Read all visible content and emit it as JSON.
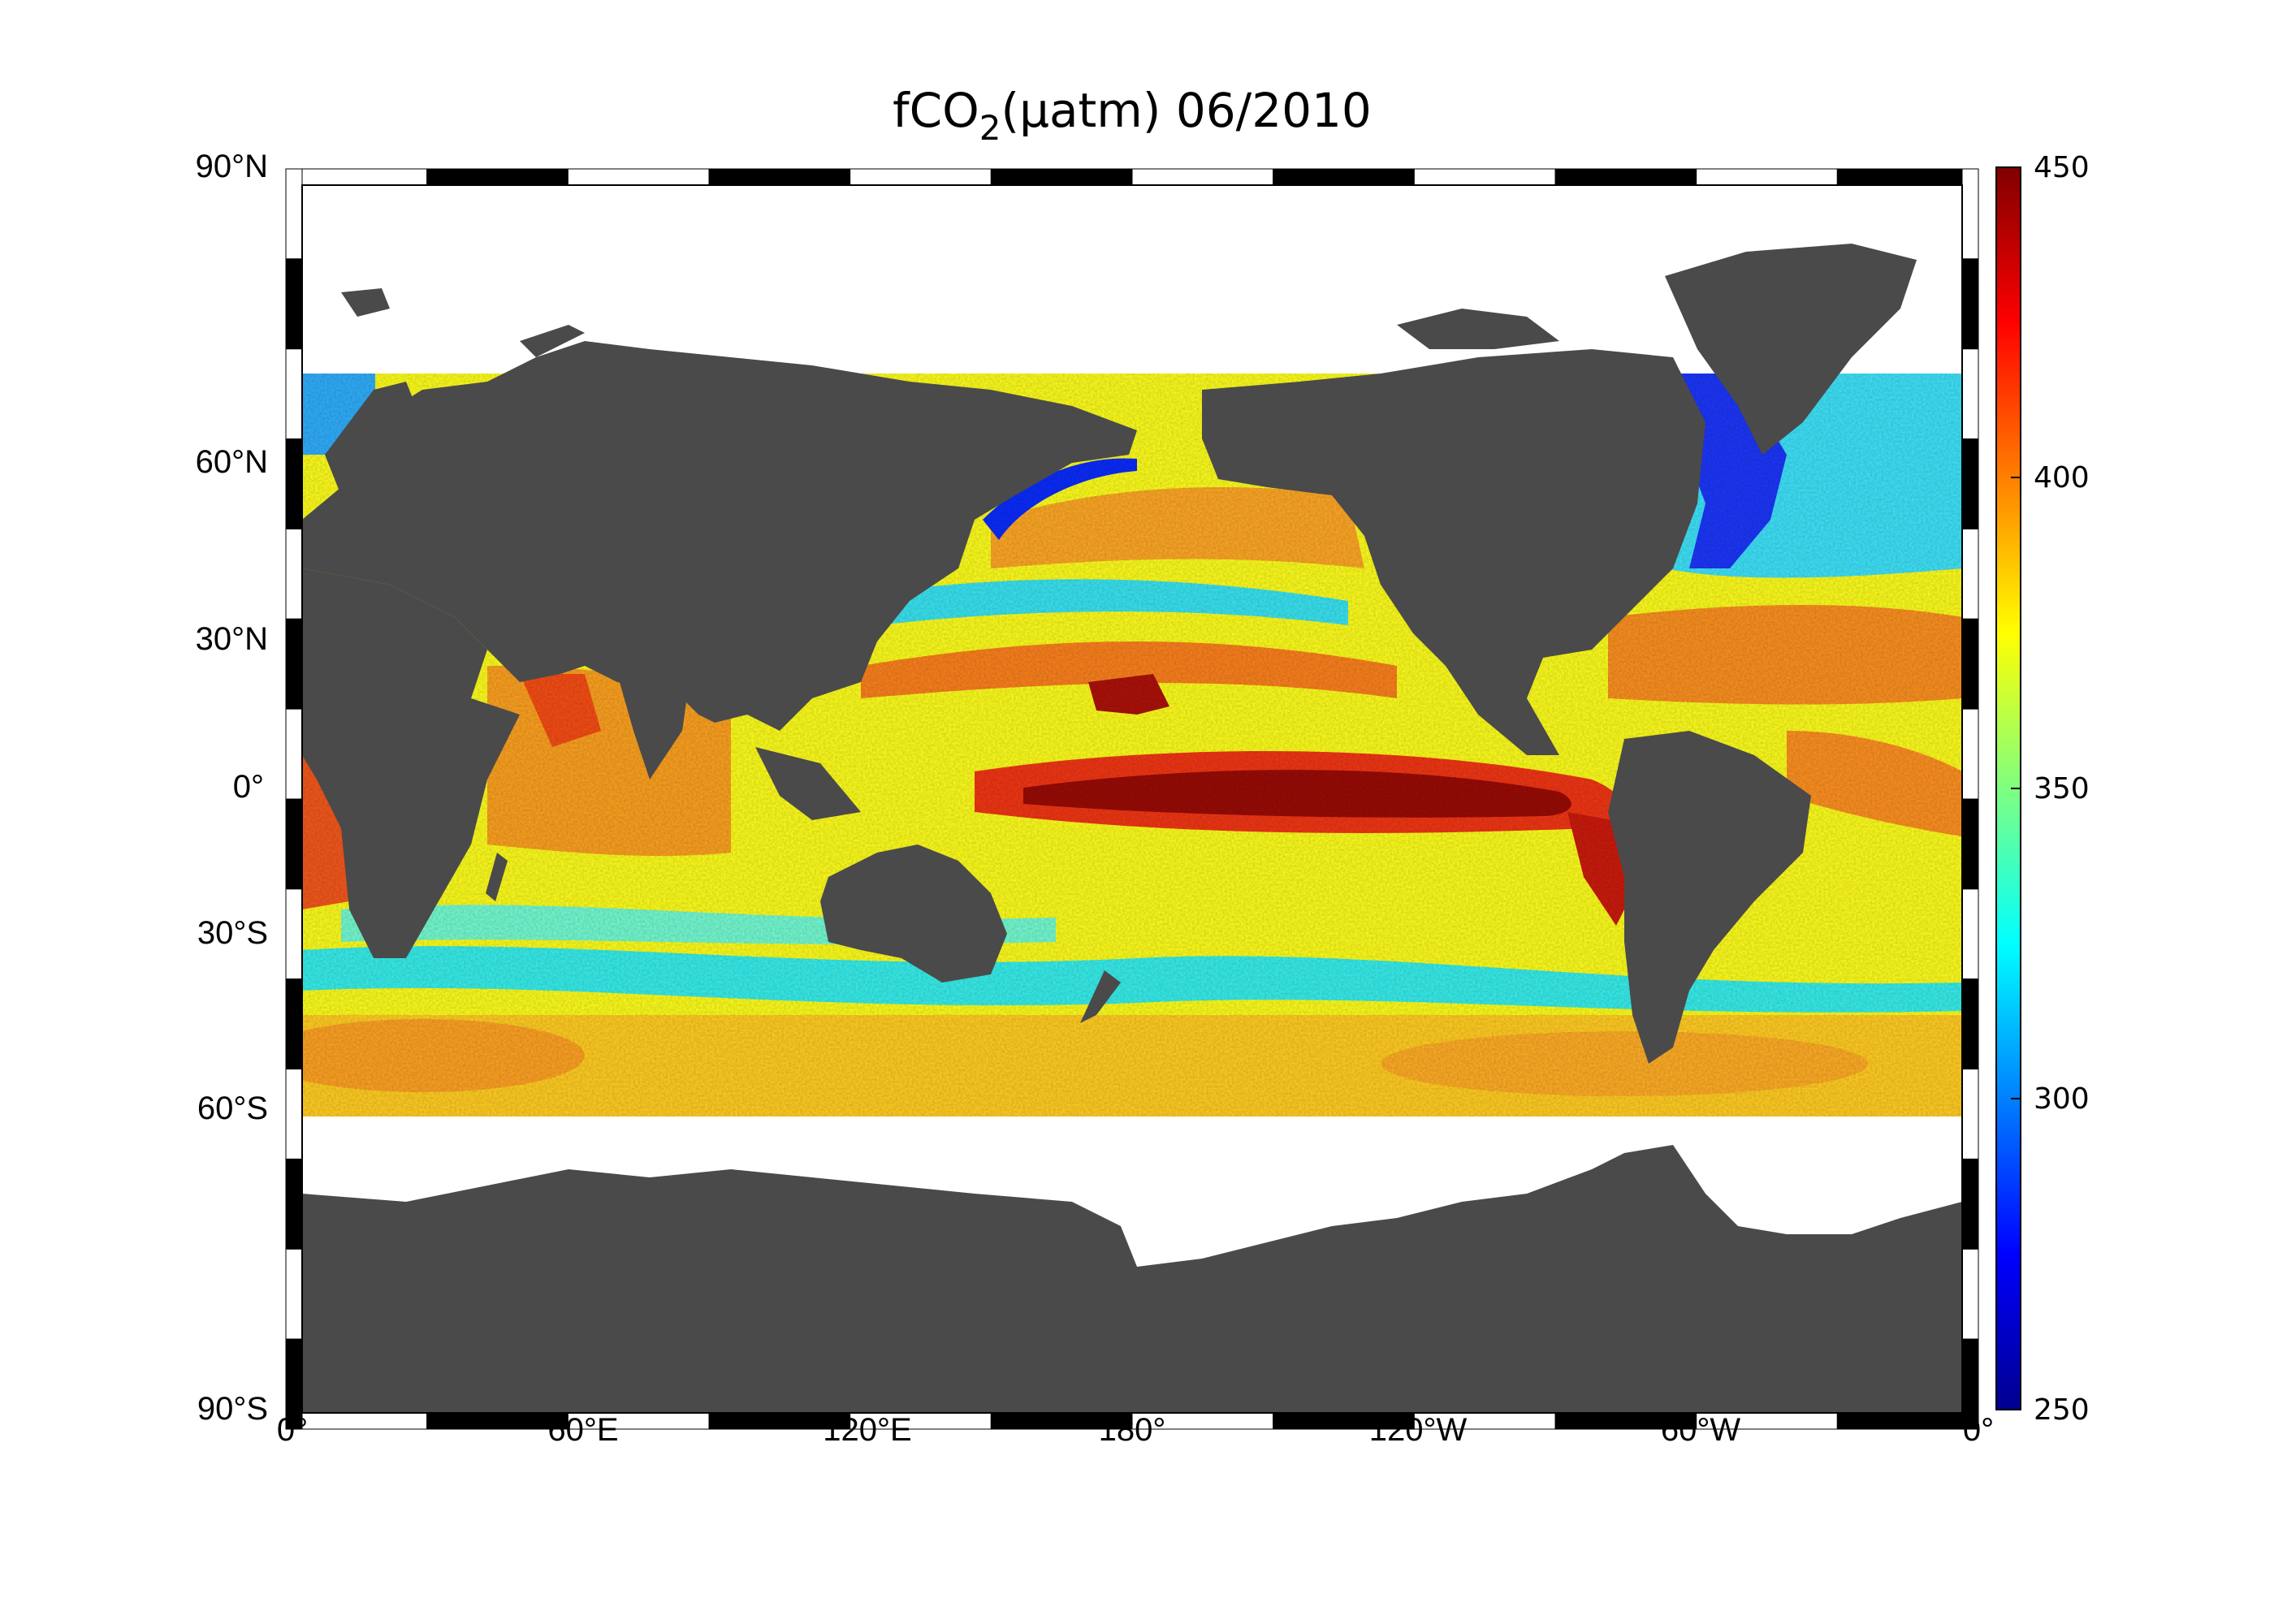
{
  "title": {
    "prefix": "fCO",
    "subscript": "2",
    "suffix": "(μatm)  06/2010"
  },
  "map": {
    "projection": "plate-carree",
    "longitude_range": [
      0,
      360
    ],
    "latitude_range": [
      -90,
      90
    ],
    "land_color": "#4a4a4a",
    "no_data_color": "#ffffff",
    "frame_style": "black-white-alternating",
    "lat_tick_labels": [
      "90°N",
      "60°N",
      "30°N",
      "0°",
      "30°S",
      "60°S",
      "90°S"
    ],
    "lon_tick_labels": [
      "0°",
      "60°E",
      "120°E",
      "180°",
      "120°W",
      "60°W",
      "0°"
    ]
  },
  "colorbar": {
    "colormap": "jet",
    "range": [
      250,
      450
    ],
    "tick_labels": [
      "450",
      "400",
      "350",
      "300",
      "250"
    ]
  },
  "chart_data": {
    "type": "heatmap",
    "title": "fCO2(μatm)  06/2010",
    "value_range": [
      250,
      450
    ],
    "data_coverage_lat": [
      -60,
      70
    ]
  }
}
